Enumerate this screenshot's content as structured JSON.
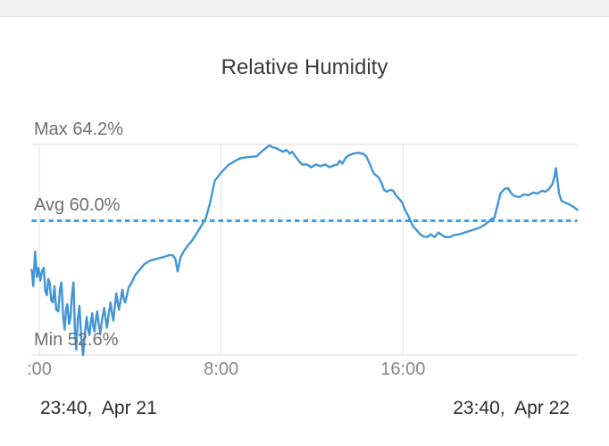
{
  "chart_data": {
    "type": "line",
    "title": "Relative Humidity",
    "unit": "%",
    "x_unit": "hours since start",
    "x_domain": [
      0,
      24
    ],
    "grid": "on",
    "stats": {
      "max": {
        "label": "Max 64.2%",
        "value": 64.2
      },
      "avg": {
        "label": "Avg 60.0%",
        "value": 60.0
      },
      "min": {
        "label": "Min 52.6%",
        "value": 52.6
      }
    },
    "x_ticks": [
      {
        "hour": 0.333,
        "label": ":00"
      },
      {
        "hour": 8.333,
        "label": "8:00"
      },
      {
        "hour": 16.333,
        "label": "16:00"
      }
    ],
    "start_timestamp": "23:40,  Apr 21",
    "end_timestamp": "23:40,  Apr 22",
    "colors": {
      "line": "#4295d6",
      "avg_line": "#3da0e8",
      "hgrid": "#d8d8da",
      "vgrid": "#e4e4e6"
    },
    "series": [
      {
        "name": "Relative Humidity",
        "points": [
          [
            0,
            57.3
          ],
          [
            0.07,
            56.4
          ],
          [
            0.15,
            58.3
          ],
          [
            0.23,
            56.9
          ],
          [
            0.3,
            57.4
          ],
          [
            0.38,
            56.7
          ],
          [
            0.45,
            57.2
          ],
          [
            0.53,
            57.4
          ],
          [
            0.6,
            56.1
          ],
          [
            0.67,
            55.9
          ],
          [
            0.73,
            56.8
          ],
          [
            0.79,
            56.6
          ],
          [
            0.86,
            55.6
          ],
          [
            0.93,
            55.5
          ],
          [
            1.0,
            56.4
          ],
          [
            1.08,
            55.1
          ],
          [
            1.17,
            55.0
          ],
          [
            1.24,
            56.2
          ],
          [
            1.31,
            56.6
          ],
          [
            1.38,
            54.8
          ],
          [
            1.45,
            54.0
          ],
          [
            1.51,
            55.1
          ],
          [
            1.57,
            55.4
          ],
          [
            1.64,
            54.3
          ],
          [
            1.7,
            54.6
          ],
          [
            1.77,
            55.9
          ],
          [
            1.84,
            56.6
          ],
          [
            1.9,
            54.0
          ],
          [
            1.96,
            52.9
          ],
          [
            2.03,
            54.6
          ],
          [
            2.1,
            55.3
          ],
          [
            2.18,
            53.6
          ],
          [
            2.26,
            52.6
          ],
          [
            2.34,
            53.8
          ],
          [
            2.42,
            54.7
          ],
          [
            2.48,
            54.0
          ],
          [
            2.54,
            53.7
          ],
          [
            2.6,
            54.4
          ],
          [
            2.66,
            54.9
          ],
          [
            2.71,
            54.2
          ],
          [
            2.76,
            53.9
          ],
          [
            2.82,
            54.5
          ],
          [
            2.88,
            55.0
          ],
          [
            2.95,
            54.3
          ],
          [
            3.02,
            53.8
          ],
          [
            3.1,
            54.6
          ],
          [
            3.19,
            55.2
          ],
          [
            3.25,
            54.6
          ],
          [
            3.31,
            54.1
          ],
          [
            3.39,
            54.9
          ],
          [
            3.47,
            55.5
          ],
          [
            3.53,
            54.9
          ],
          [
            3.59,
            54.5
          ],
          [
            3.66,
            55.3
          ],
          [
            3.72,
            56.0
          ],
          [
            3.78,
            55.5
          ],
          [
            3.84,
            55.1
          ],
          [
            3.92,
            55.7
          ],
          [
            3.99,
            56.2
          ],
          [
            4.05,
            55.7
          ],
          [
            4.11,
            55.5
          ],
          [
            4.19,
            55.9
          ],
          [
            4.26,
            56.3
          ],
          [
            4.4,
            56.6
          ],
          [
            4.55,
            57.0
          ],
          [
            4.75,
            57.3
          ],
          [
            4.95,
            57.6
          ],
          [
            5.2,
            57.8
          ],
          [
            5.5,
            57.9
          ],
          [
            5.8,
            58.0
          ],
          [
            6.05,
            58.1
          ],
          [
            6.2,
            58.1
          ],
          [
            6.32,
            57.9
          ],
          [
            6.42,
            57.2
          ],
          [
            6.55,
            58.0
          ],
          [
            6.68,
            58.3
          ],
          [
            6.85,
            58.6
          ],
          [
            7.05,
            58.9
          ],
          [
            7.25,
            59.3
          ],
          [
            7.45,
            59.7
          ],
          [
            7.65,
            60.1
          ],
          [
            7.85,
            61.0
          ],
          [
            8.05,
            62.2
          ],
          [
            8.3,
            62.6
          ],
          [
            8.63,
            63.05
          ],
          [
            8.95,
            63.3
          ],
          [
            9.2,
            63.45
          ],
          [
            9.5,
            63.5
          ],
          [
            9.9,
            63.55
          ],
          [
            10.1,
            63.8
          ],
          [
            10.3,
            64.0
          ],
          [
            10.45,
            64.15
          ],
          [
            10.6,
            64.05
          ],
          [
            10.75,
            64.0
          ],
          [
            10.9,
            63.9
          ],
          [
            11.05,
            63.8
          ],
          [
            11.2,
            63.9
          ],
          [
            11.35,
            63.7
          ],
          [
            11.45,
            63.8
          ],
          [
            11.6,
            63.55
          ],
          [
            11.75,
            63.3
          ],
          [
            11.9,
            63.1
          ],
          [
            12.1,
            63.1
          ],
          [
            12.3,
            62.95
          ],
          [
            12.5,
            63.1
          ],
          [
            12.7,
            63.0
          ],
          [
            12.9,
            63.1
          ],
          [
            13.1,
            62.95
          ],
          [
            13.3,
            63.05
          ],
          [
            13.45,
            63.1
          ],
          [
            13.55,
            63.3
          ],
          [
            13.67,
            63.15
          ],
          [
            13.8,
            63.45
          ],
          [
            13.95,
            63.6
          ],
          [
            14.15,
            63.7
          ],
          [
            14.35,
            63.75
          ],
          [
            14.55,
            63.7
          ],
          [
            14.72,
            63.55
          ],
          [
            14.88,
            63.1
          ],
          [
            15.05,
            62.6
          ],
          [
            15.25,
            62.4
          ],
          [
            15.38,
            62.1
          ],
          [
            15.5,
            61.7
          ],
          [
            15.62,
            61.6
          ],
          [
            15.78,
            61.7
          ],
          [
            15.9,
            61.65
          ],
          [
            16.02,
            61.4
          ],
          [
            16.17,
            61.2
          ],
          [
            16.3,
            61.0
          ],
          [
            16.42,
            60.6
          ],
          [
            16.57,
            60.25
          ],
          [
            16.77,
            59.7
          ],
          [
            16.92,
            59.5
          ],
          [
            17.05,
            59.3
          ],
          [
            17.2,
            59.15
          ],
          [
            17.4,
            59.1
          ],
          [
            17.55,
            59.25
          ],
          [
            17.72,
            59.1
          ],
          [
            17.9,
            59.35
          ],
          [
            18.05,
            59.2
          ],
          [
            18.2,
            59.1
          ],
          [
            18.4,
            59.1
          ],
          [
            18.55,
            59.2
          ],
          [
            18.8,
            59.25
          ],
          [
            19.05,
            59.35
          ],
          [
            19.3,
            59.45
          ],
          [
            19.55,
            59.55
          ],
          [
            19.75,
            59.65
          ],
          [
            19.95,
            59.8
          ],
          [
            20.1,
            59.95
          ],
          [
            20.22,
            60.1
          ],
          [
            20.35,
            60.15
          ],
          [
            20.5,
            60.9
          ],
          [
            20.62,
            61.5
          ],
          [
            20.8,
            61.75
          ],
          [
            20.95,
            61.8
          ],
          [
            21.1,
            61.5
          ],
          [
            21.25,
            61.35
          ],
          [
            21.45,
            61.3
          ],
          [
            21.65,
            61.45
          ],
          [
            21.85,
            61.4
          ],
          [
            22.05,
            61.55
          ],
          [
            22.25,
            61.5
          ],
          [
            22.45,
            61.65
          ],
          [
            22.6,
            61.6
          ],
          [
            22.75,
            61.75
          ],
          [
            22.9,
            62.0
          ],
          [
            23.0,
            62.45
          ],
          [
            23.06,
            62.9
          ],
          [
            23.12,
            62.3
          ],
          [
            23.2,
            61.5
          ],
          [
            23.3,
            61.1
          ],
          [
            23.45,
            61.0
          ],
          [
            23.65,
            60.9
          ],
          [
            23.85,
            60.75
          ],
          [
            24,
            60.6
          ]
        ]
      }
    ]
  }
}
